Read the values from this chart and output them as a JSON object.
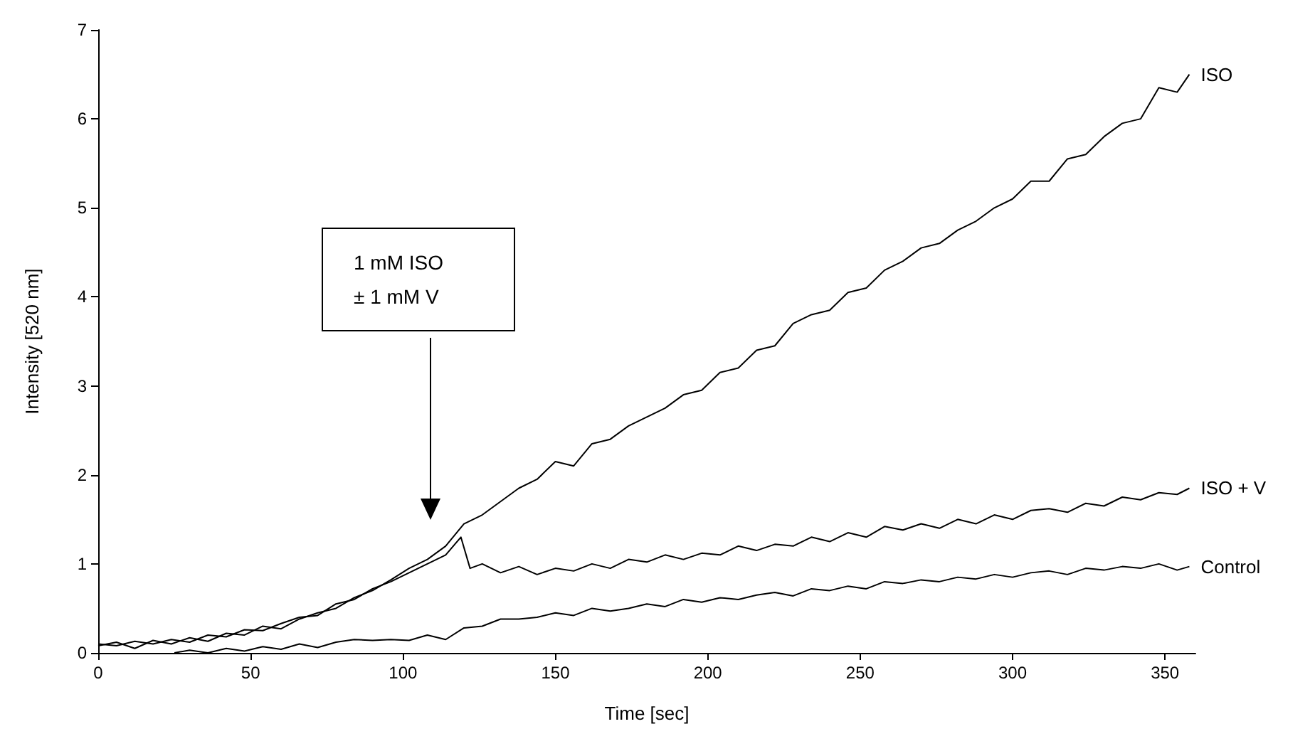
{
  "chart_data": {
    "type": "line",
    "xlabel": "Time [sec]",
    "ylabel": "Intensity [520 nm]",
    "xlim": [
      0,
      360
    ],
    "xticks": [
      0,
      50,
      100,
      150,
      200,
      250,
      300,
      350
    ],
    "ylim": [
      0,
      7
    ],
    "yticks": [
      0,
      1,
      2,
      3,
      4,
      5,
      6,
      7
    ],
    "grid": false,
    "legend": false,
    "marker": "none",
    "line_style": "solid",
    "annotations": [
      "1 mM ISO\n± 1 mM V"
    ],
    "series": [
      {
        "name": "ISO",
        "color": "#000000",
        "x": [
          0,
          6,
          12,
          18,
          24,
          30,
          36,
          42,
          48,
          54,
          60,
          66,
          72,
          78,
          84,
          90,
          96,
          102,
          108,
          114,
          120,
          126,
          132,
          138,
          144,
          150,
          156,
          162,
          168,
          174,
          180,
          186,
          192,
          198,
          204,
          210,
          216,
          222,
          228,
          234,
          240,
          246,
          252,
          258,
          264,
          270,
          276,
          282,
          288,
          294,
          300,
          306,
          312,
          318,
          324,
          330,
          336,
          342,
          348,
          354,
          358
        ],
        "values": [
          0.08,
          0.12,
          0.05,
          0.14,
          0.1,
          0.17,
          0.13,
          0.22,
          0.2,
          0.3,
          0.27,
          0.38,
          0.45,
          0.5,
          0.62,
          0.7,
          0.82,
          0.95,
          1.05,
          1.2,
          1.45,
          1.55,
          1.7,
          1.85,
          1.95,
          2.15,
          2.1,
          2.35,
          2.4,
          2.55,
          2.65,
          2.75,
          2.9,
          2.95,
          3.15,
          3.2,
          3.4,
          3.45,
          3.7,
          3.8,
          3.85,
          4.05,
          4.1,
          4.3,
          4.4,
          4.55,
          4.6,
          4.75,
          4.85,
          5.0,
          5.1,
          5.3,
          5.3,
          5.55,
          5.6,
          5.8,
          5.95,
          6.0,
          6.35,
          6.3,
          6.5
        ]
      },
      {
        "name": "ISO + V",
        "color": "#000000",
        "x": [
          0,
          6,
          12,
          18,
          24,
          30,
          36,
          42,
          48,
          54,
          60,
          66,
          72,
          78,
          84,
          90,
          96,
          102,
          108,
          114,
          119,
          122,
          126,
          132,
          138,
          144,
          150,
          156,
          162,
          168,
          174,
          180,
          186,
          192,
          198,
          204,
          210,
          216,
          222,
          228,
          234,
          240,
          246,
          252,
          258,
          264,
          270,
          276,
          282,
          288,
          294,
          300,
          306,
          312,
          318,
          324,
          330,
          336,
          342,
          348,
          354,
          358
        ],
        "values": [
          0.1,
          0.08,
          0.13,
          0.1,
          0.15,
          0.12,
          0.2,
          0.18,
          0.26,
          0.25,
          0.33,
          0.4,
          0.42,
          0.55,
          0.6,
          0.72,
          0.8,
          0.9,
          1.0,
          1.1,
          1.3,
          0.95,
          1.0,
          0.9,
          0.97,
          0.88,
          0.95,
          0.92,
          1.0,
          0.95,
          1.05,
          1.02,
          1.1,
          1.05,
          1.12,
          1.1,
          1.2,
          1.15,
          1.22,
          1.2,
          1.3,
          1.25,
          1.35,
          1.3,
          1.42,
          1.38,
          1.45,
          1.4,
          1.5,
          1.45,
          1.55,
          1.5,
          1.6,
          1.62,
          1.58,
          1.68,
          1.65,
          1.75,
          1.72,
          1.8,
          1.78,
          1.85
        ]
      },
      {
        "name": "Control",
        "color": "#000000",
        "x": [
          25,
          30,
          36,
          42,
          48,
          54,
          60,
          66,
          72,
          78,
          84,
          90,
          96,
          102,
          108,
          114,
          120,
          126,
          132,
          138,
          144,
          150,
          156,
          162,
          168,
          174,
          180,
          186,
          192,
          198,
          204,
          210,
          216,
          222,
          228,
          234,
          240,
          246,
          252,
          258,
          264,
          270,
          276,
          282,
          288,
          294,
          300,
          306,
          312,
          318,
          324,
          330,
          336,
          342,
          348,
          354,
          358
        ],
        "values": [
          0,
          0.03,
          0,
          0.05,
          0.02,
          0.07,
          0.04,
          0.1,
          0.06,
          0.12,
          0.15,
          0.14,
          0.15,
          0.14,
          0.2,
          0.15,
          0.28,
          0.3,
          0.38,
          0.38,
          0.4,
          0.45,
          0.42,
          0.5,
          0.47,
          0.5,
          0.55,
          0.52,
          0.6,
          0.57,
          0.62,
          0.6,
          0.65,
          0.68,
          0.64,
          0.72,
          0.7,
          0.75,
          0.72,
          0.8,
          0.78,
          0.82,
          0.8,
          0.85,
          0.83,
          0.88,
          0.85,
          0.9,
          0.92,
          0.88,
          0.95,
          0.93,
          0.97,
          0.95,
          1.0,
          0.93,
          0.97
        ]
      }
    ]
  }
}
